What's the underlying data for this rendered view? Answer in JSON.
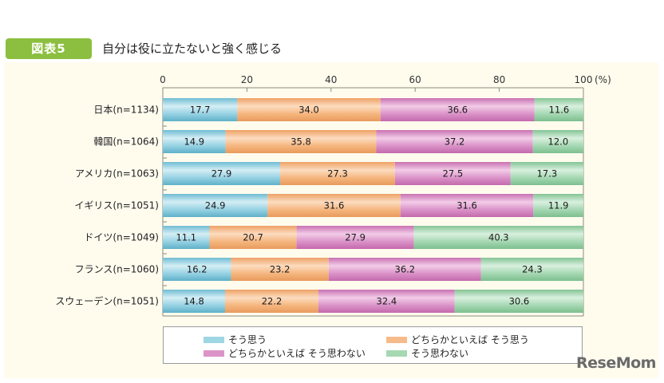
{
  "header": {
    "badge": "図表5",
    "title": "自分は役に立たないと強く感じる"
  },
  "watermark": "ReseMom",
  "chart_data": {
    "type": "bar",
    "orientation": "horizontal",
    "stacked": true,
    "title": "自分は役に立たないと強く感じる",
    "xlabel": "(%)",
    "ylabel": "",
    "xlim": [
      0,
      100
    ],
    "xticks": [
      "0",
      "20",
      "40",
      "60",
      "80",
      "100"
    ],
    "xtick_values": [
      0,
      20,
      40,
      60,
      80,
      100
    ],
    "unit_label": "(%)",
    "grid": false,
    "legend_position": "bottom",
    "categories": [
      "日本(n=1134)",
      "韓国(n=1064)",
      "アメリカ(n=1063)",
      "イギリス(n=1051)",
      "ドイツ(n=1049)",
      "フランス(n=1060)",
      "スウェーデン(n=1051)"
    ],
    "series": [
      {
        "name": "そう思う",
        "color": "#8ecfe0",
        "values": [
          17.7,
          14.9,
          27.9,
          24.9,
          11.1,
          16.2,
          14.8
        ]
      },
      {
        "name": "どちらかといえば そう思う",
        "color": "#f4b27a",
        "values": [
          34.0,
          35.8,
          27.3,
          31.6,
          20.7,
          23.2,
          22.2
        ]
      },
      {
        "name": "どちらかといえば そう思わない",
        "color": "#d98cc4",
        "values": [
          36.6,
          37.2,
          27.5,
          31.6,
          27.9,
          36.2,
          32.4
        ]
      },
      {
        "name": "そう思わない",
        "color": "#9fd3ab",
        "values": [
          11.6,
          12.0,
          17.3,
          11.9,
          40.3,
          24.3,
          30.6
        ]
      }
    ]
  },
  "legend": {
    "items": [
      {
        "label": "そう思う",
        "color": "#9fd6e4"
      },
      {
        "label": "どちらかといえば そう思う",
        "color": "#f6bb8a"
      },
      {
        "label": "どちらかといえば そう思わない",
        "color": "#dc94c8"
      },
      {
        "label": "そう思わない",
        "color": "#a6d8b2"
      }
    ]
  }
}
